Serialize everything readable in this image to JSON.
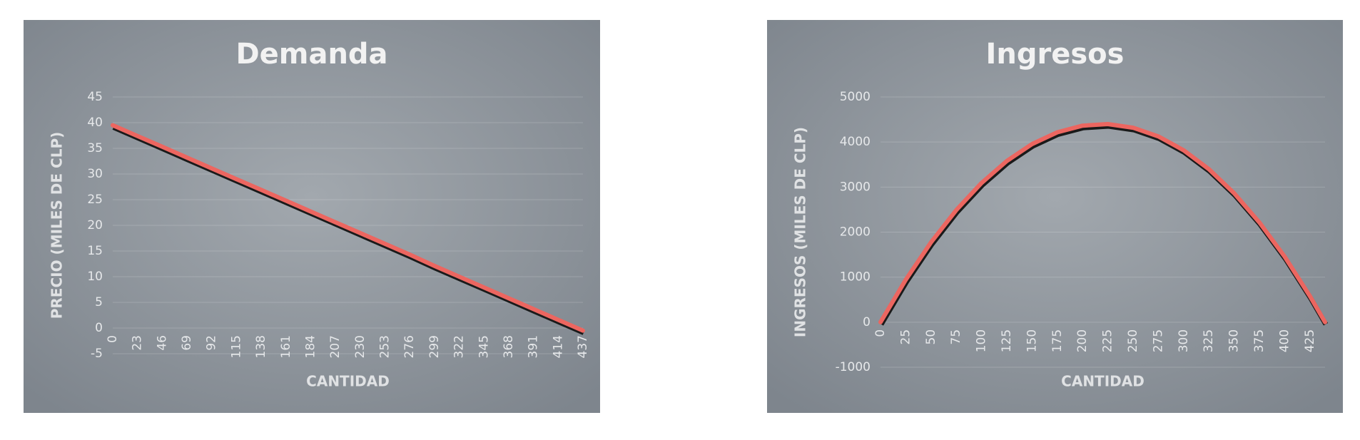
{
  "chart_data": [
    {
      "type": "line",
      "title": "Demanda",
      "x_label": "CANTIDAD",
      "y_label": "PRECIO (MILES DE CLP)",
      "color": "#ec6660",
      "grid": true,
      "x": [
        0,
        23,
        46,
        69,
        92,
        115,
        138,
        161,
        184,
        207,
        230,
        253,
        276,
        299,
        322,
        345,
        368,
        391,
        414,
        437
      ],
      "values": [
        39.5,
        37.4,
        35.3,
        33.2,
        31.1,
        29.0,
        26.9,
        24.8,
        22.7,
        20.6,
        18.5,
        16.4,
        14.3,
        12.1,
        10.0,
        7.9,
        5.8,
        3.7,
        1.6,
        -0.5
      ],
      "xlim": [
        0,
        437
      ],
      "xticks": [
        0,
        23,
        46,
        69,
        92,
        115,
        138,
        161,
        184,
        207,
        230,
        253,
        276,
        299,
        322,
        345,
        368,
        391,
        414,
        437
      ],
      "ylim": [
        -5,
        45
      ],
      "yticks": [
        -5,
        0,
        5,
        10,
        15,
        20,
        25,
        30,
        35,
        40,
        45
      ]
    },
    {
      "type": "line",
      "title": "Ingresos",
      "x_label": "CANTIDAD",
      "y_label": "INGRESOS (MILES DE CLP)",
      "color": "#ec6660",
      "grid": true,
      "x": [
        0,
        25,
        50,
        75,
        100,
        125,
        150,
        175,
        200,
        225,
        250,
        275,
        300,
        325,
        350,
        375,
        400,
        425,
        440
      ],
      "values": [
        0,
        943,
        1773,
        2489,
        3091,
        3580,
        3955,
        4216,
        4364,
        4398,
        4318,
        4125,
        3818,
        3398,
        2864,
        2216,
        1455,
        580,
        0
      ],
      "xlim": [
        0,
        440
      ],
      "xticks": [
        0,
        25,
        50,
        75,
        100,
        125,
        150,
        175,
        200,
        225,
        250,
        275,
        300,
        325,
        350,
        375,
        400,
        425
      ],
      "ylim": [
        -1000,
        5000
      ],
      "yticks": [
        -1000,
        0,
        1000,
        2000,
        3000,
        4000,
        5000
      ]
    }
  ]
}
